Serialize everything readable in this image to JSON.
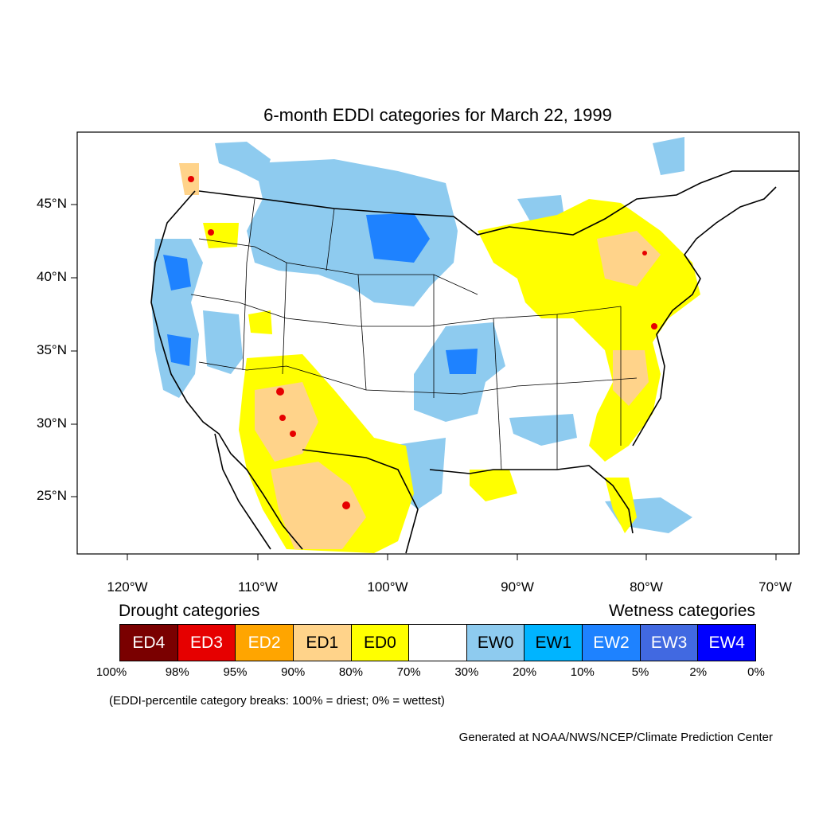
{
  "title": "6-month EDDI categories for March 22, 1999",
  "latitude_labels": [
    "45°N",
    "40°N",
    "35°N",
    "30°N",
    "25°N"
  ],
  "longitude_labels": [
    "120°W",
    "110°W",
    "100°W",
    "90°W",
    "80°W",
    "70°W"
  ],
  "legend": {
    "drought_heading": "Drought categories",
    "wetness_heading": "Wetness categories",
    "categories": [
      {
        "label": "ED4",
        "color": "#7a0000",
        "text_color": "#ffffff"
      },
      {
        "label": "ED3",
        "color": "#e60000",
        "text_color": "#ffffff"
      },
      {
        "label": "ED2",
        "color": "#ffa500",
        "text_color": "#ffffff"
      },
      {
        "label": "ED1",
        "color": "#ffd38a",
        "text_color": "#000000"
      },
      {
        "label": "ED0",
        "color": "#ffff00",
        "text_color": "#000000"
      },
      {
        "label": "",
        "color": "#ffffff",
        "text_color": "#000000"
      },
      {
        "label": "EW0",
        "color": "#8ecbef",
        "text_color": "#000000"
      },
      {
        "label": "EW1",
        "color": "#00b4ff",
        "text_color": "#000000"
      },
      {
        "label": "EW2",
        "color": "#1e82ff",
        "text_color": "#ffffff"
      },
      {
        "label": "EW3",
        "color": "#4169e1",
        "text_color": "#ffffff"
      },
      {
        "label": "EW4",
        "color": "#0000ff",
        "text_color": "#ffffff"
      }
    ],
    "breaks": [
      "100%",
      "98%",
      "95%",
      "90%",
      "80%",
      "70%",
      "30%",
      "20%",
      "10%",
      "5%",
      "2%",
      "0%"
    ],
    "note": "(EDDI-percentile category breaks: 100% = driest; 0% = wettest)"
  },
  "credit": "Generated at NOAA/NWS/NCEP/Climate Prediction Center"
}
